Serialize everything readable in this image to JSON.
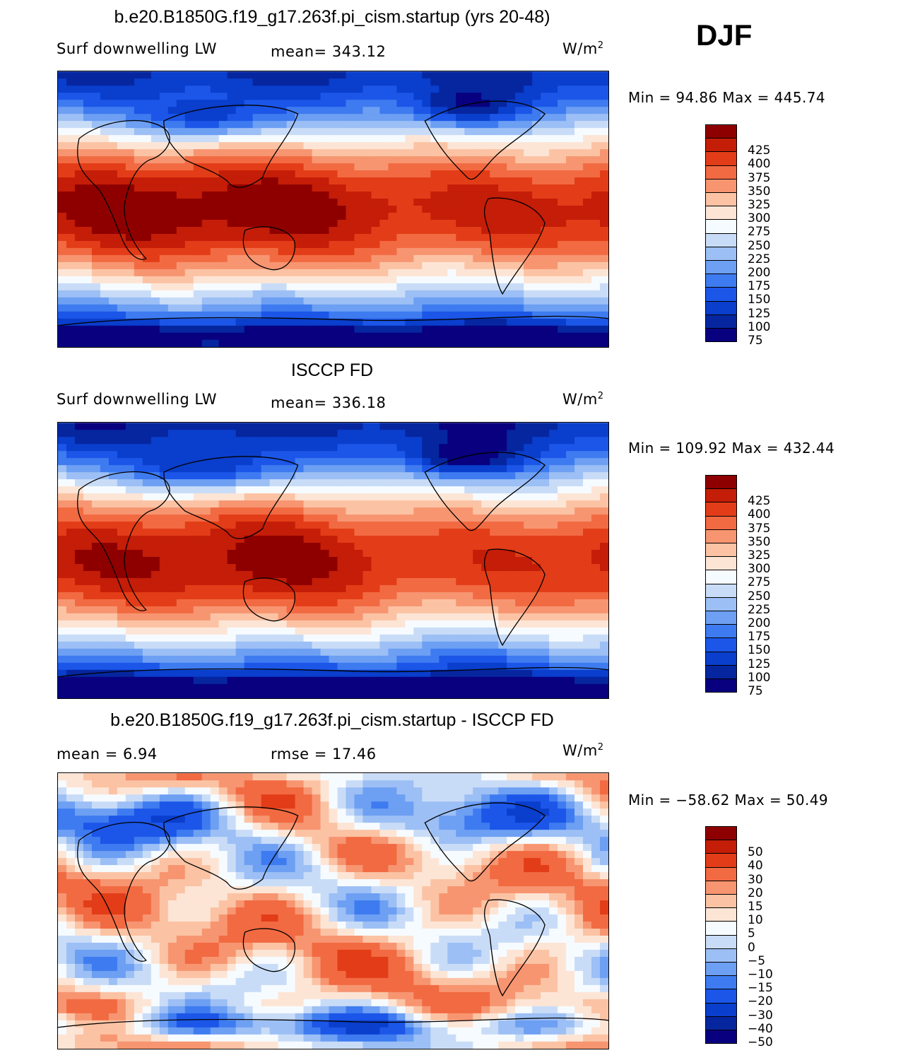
{
  "season": "DJF",
  "units_prefix": "W/m",
  "units_sup": "2",
  "panels": [
    {
      "title": "b.e20.B1850G.f19_g17.263f.pi_cism.startup (yrs 20-48)",
      "left_label": "Surf downwelling LW",
      "mid_label": "mean= 343.12",
      "minmax": "Min =  94.86 Max = 445.74",
      "variant": "model"
    },
    {
      "title": "ISCCP FD",
      "left_label": "Surf downwelling LW",
      "mid_label": "mean= 336.18",
      "minmax": "Min = 109.92 Max = 432.44",
      "variant": "obs"
    },
    {
      "title": "b.e20.B1850G.f19_g17.263f.pi_cism.startup - ISCCP FD",
      "left_label": "mean =    6.94",
      "mid_label": "rmse =   17.46",
      "minmax": "Min = −58.62 Max =   50.49",
      "variant": "diff"
    }
  ],
  "chart_data": [
    {
      "type": "heatmap",
      "title": "b.e20.B1850G.f19_g17.263f.pi_cism.startup (yrs 20-48)",
      "variable": "Surf downwelling LW",
      "units": "W/m2",
      "mean": 343.12,
      "min": 94.86,
      "max": 445.74,
      "levels": [
        75,
        100,
        125,
        150,
        175,
        200,
        225,
        250,
        275,
        300,
        325,
        350,
        375,
        400,
        425
      ],
      "level_labels": [
        "75",
        "100",
        "125",
        "150",
        "175",
        "200",
        "225",
        "250",
        "275",
        "300",
        "325",
        "350",
        "375",
        "400",
        "425"
      ]
    },
    {
      "type": "heatmap",
      "title": "ISCCP FD",
      "variable": "Surf downwelling LW",
      "units": "W/m2",
      "mean": 336.18,
      "min": 109.92,
      "max": 432.44,
      "levels": [
        75,
        100,
        125,
        150,
        175,
        200,
        225,
        250,
        275,
        300,
        325,
        350,
        375,
        400,
        425
      ],
      "level_labels": [
        "75",
        "100",
        "125",
        "150",
        "175",
        "200",
        "225",
        "250",
        "275",
        "300",
        "325",
        "350",
        "375",
        "400",
        "425"
      ]
    },
    {
      "type": "heatmap",
      "title": "b.e20.B1850G.f19_g17.263f.pi_cism.startup - ISCCP FD",
      "units": "W/m2",
      "mean": 6.94,
      "rmse": 17.46,
      "min": -58.62,
      "max": 50.49,
      "levels": [
        -50,
        -40,
        -30,
        -20,
        -15,
        -10,
        -5,
        0,
        5,
        10,
        15,
        20,
        30,
        40,
        50
      ],
      "level_labels": [
        "−50",
        "−40",
        "−30",
        "−20",
        "−15",
        "−10",
        "−5",
        "0",
        "5",
        "10",
        "15",
        "20",
        "30",
        "40",
        "50"
      ]
    }
  ],
  "colors": [
    "#08007f",
    "#0626a0",
    "#0a3ecc",
    "#1b56e8",
    "#3e7bf0",
    "#6d9ff3",
    "#9cbff5",
    "#c9dcf7",
    "#f6fbff",
    "#fde5d6",
    "#fbc3a4",
    "#f79571",
    "#f26a42",
    "#e23d18",
    "#c41d08",
    "#8e0000"
  ]
}
